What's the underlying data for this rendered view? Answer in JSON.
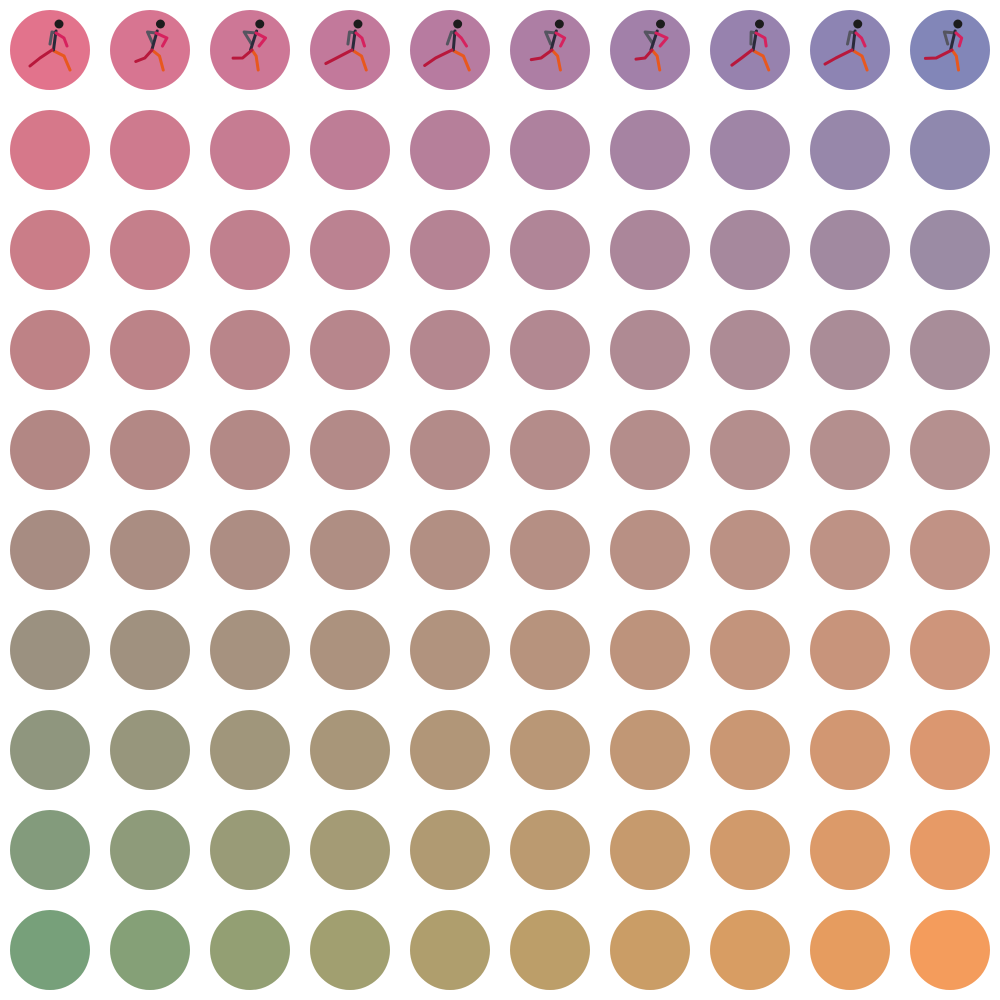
{
  "grid": {
    "rows": 10,
    "columns": 10,
    "corner_colors": {
      "top_left": "#e2738c",
      "top_right": "#8286b8",
      "bottom_left": "#77a07a",
      "bottom_right": "#f49c5c"
    }
  },
  "runner_row": {
    "row_index": 0,
    "icon": "runner-icon",
    "colors": {
      "head": "#1c1c1c",
      "torso": "#2a2a3a",
      "near_arm": "#d6225e",
      "far_arm": "#555560",
      "near_leg": "#b8183c",
      "far_leg": "#e8581e"
    }
  }
}
